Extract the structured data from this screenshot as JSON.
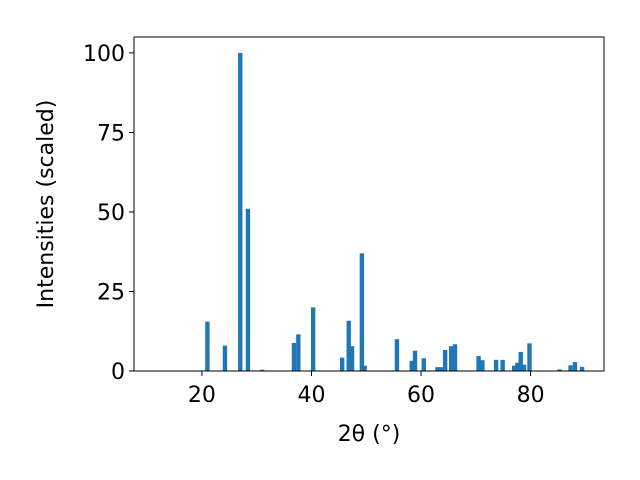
{
  "chart_data": {
    "type": "bar",
    "xlabel": "2θ (°)",
    "ylabel": "Intensities (scaled)",
    "xlim": [
      7.6,
      93.4
    ],
    "ylim": [
      0,
      105
    ],
    "xticks": [
      20,
      40,
      60,
      80
    ],
    "yticks": [
      0,
      25,
      50,
      75,
      100
    ],
    "bar_width": 0.8,
    "color": "#1f77b4",
    "grid": false,
    "x": [
      21.0,
      24.2,
      27.0,
      28.4,
      31.0,
      36.8,
      37.6,
      40.3,
      45.6,
      46.8,
      47.4,
      49.2,
      49.7,
      55.6,
      58.3,
      58.9,
      60.5,
      63.0,
      63.6,
      64.4,
      65.5,
      66.2,
      70.5,
      71.2,
      73.7,
      74.9,
      77.0,
      77.6,
      78.2,
      78.8,
      79.8,
      85.3,
      87.3,
      88.1,
      89.4
    ],
    "values": [
      15.5,
      8.0,
      100.0,
      51.0,
      0.4,
      8.8,
      11.5,
      20.0,
      4.2,
      15.8,
      7.8,
      37.0,
      1.7,
      10.0,
      3.2,
      6.4,
      4.0,
      1.2,
      1.2,
      6.6,
      7.8,
      8.4,
      4.7,
      3.4,
      3.5,
      3.5,
      1.7,
      2.6,
      6.0,
      2.0,
      8.7,
      0.5,
      1.8,
      2.8,
      1.3
    ]
  }
}
